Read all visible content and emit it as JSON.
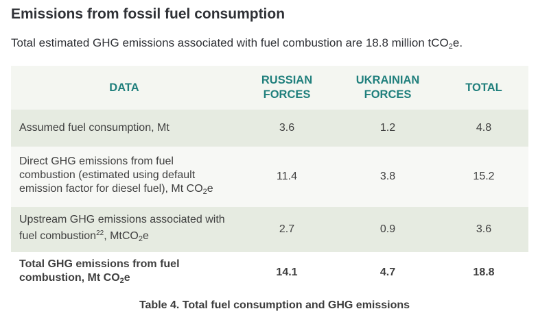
{
  "section": {
    "title": "Emissions from fossil fuel consumption",
    "summary_prefix": "Total estimated GHG emissions associated with fuel combustion are 18.8 million tCO",
    "summary_subscript": "2",
    "summary_suffix": "e."
  },
  "table": {
    "headers": {
      "data": "DATA",
      "russian_line1": "RUSSIAN",
      "russian_line2": "FORCES",
      "ukrainian_line1": "UKRAINIAN",
      "ukrainian_line2": "FORCES",
      "total": "TOTAL"
    },
    "rows": [
      {
        "label_a": "Assumed fuel consumption, Mt",
        "russian": "3.6",
        "ukrainian": "1.2",
        "total": "4.8"
      },
      {
        "label_a": "Direct GHG emissions from fuel combustion (estimated using default emission factor for diesel fuel), Mt CO",
        "label_sub": "2",
        "label_b": "e",
        "russian": "11.4",
        "ukrainian": "3.8",
        "total": "15.2"
      },
      {
        "label_a": "Upstream GHG emissions associated with fuel combustion",
        "label_sup": "22",
        "label_mid": ", MtCO",
        "label_sub": "2",
        "label_b": "e",
        "russian": "2.7",
        "ukrainian": "0.9",
        "total": "3.6"
      },
      {
        "label_a": "Total GHG emissions from fuel combustion, Mt CO",
        "label_sub": "2",
        "label_b": "e",
        "russian": "14.1",
        "ukrainian": "4.7",
        "total": "18.8"
      }
    ],
    "caption": "Table 4. Total fuel consumption and GHG emissions"
  },
  "colors": {
    "header_text": "#1f7f7c",
    "header_bg": "#f4f6f1",
    "row_shaded": "#e6ebe1",
    "row_plain": "#f7f8f5"
  }
}
